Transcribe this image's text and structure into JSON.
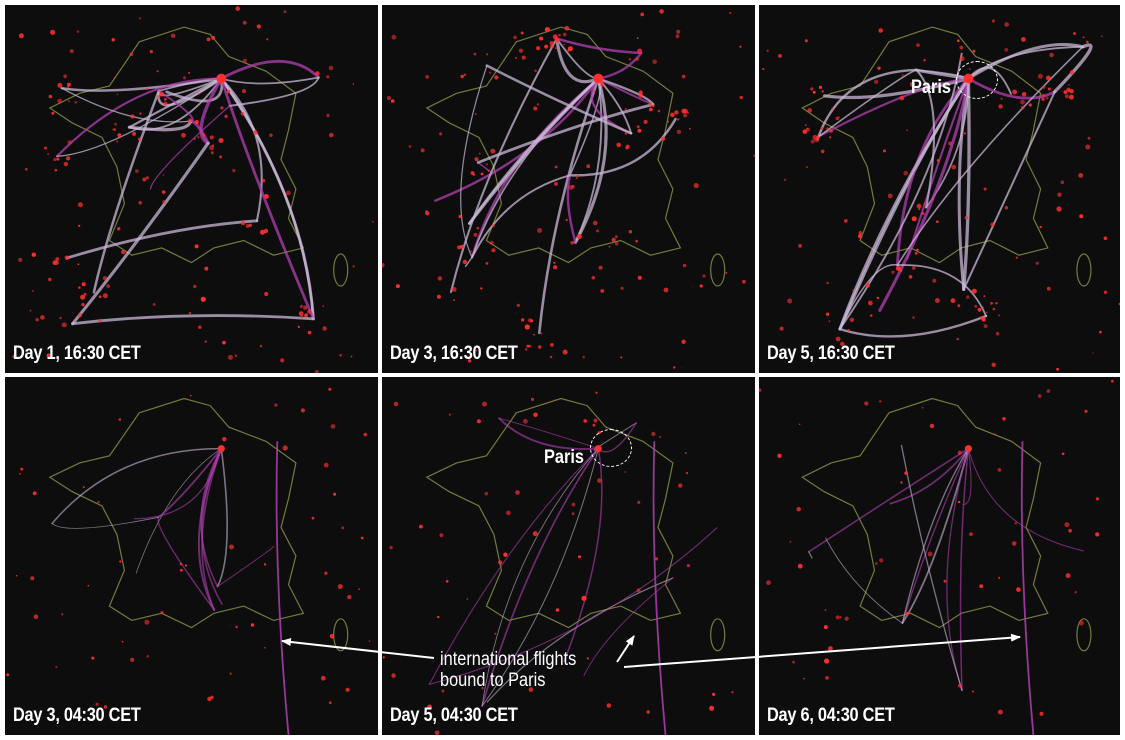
{
  "panels": [
    {
      "caption": "Day 1, 16:30 CET"
    },
    {
      "caption": "Day 3, 16:30 CET"
    },
    {
      "caption": "Day 5, 16:30 CET",
      "paris_label": "Paris"
    },
    {
      "caption": "Day 3, 04:30 CET"
    },
    {
      "caption": "Day 5, 04:30 CET",
      "paris_label": "Paris"
    },
    {
      "caption": "Day 6, 04:30 CET"
    }
  ],
  "annotation": {
    "line1": "international flights",
    "line2": "bound to Paris"
  },
  "colors": {
    "background": "#0d0d0d",
    "border": "#c8d860",
    "airports": "#ff3030",
    "flows": "#c9b8d6",
    "flows_accent": "#b040b0"
  }
}
